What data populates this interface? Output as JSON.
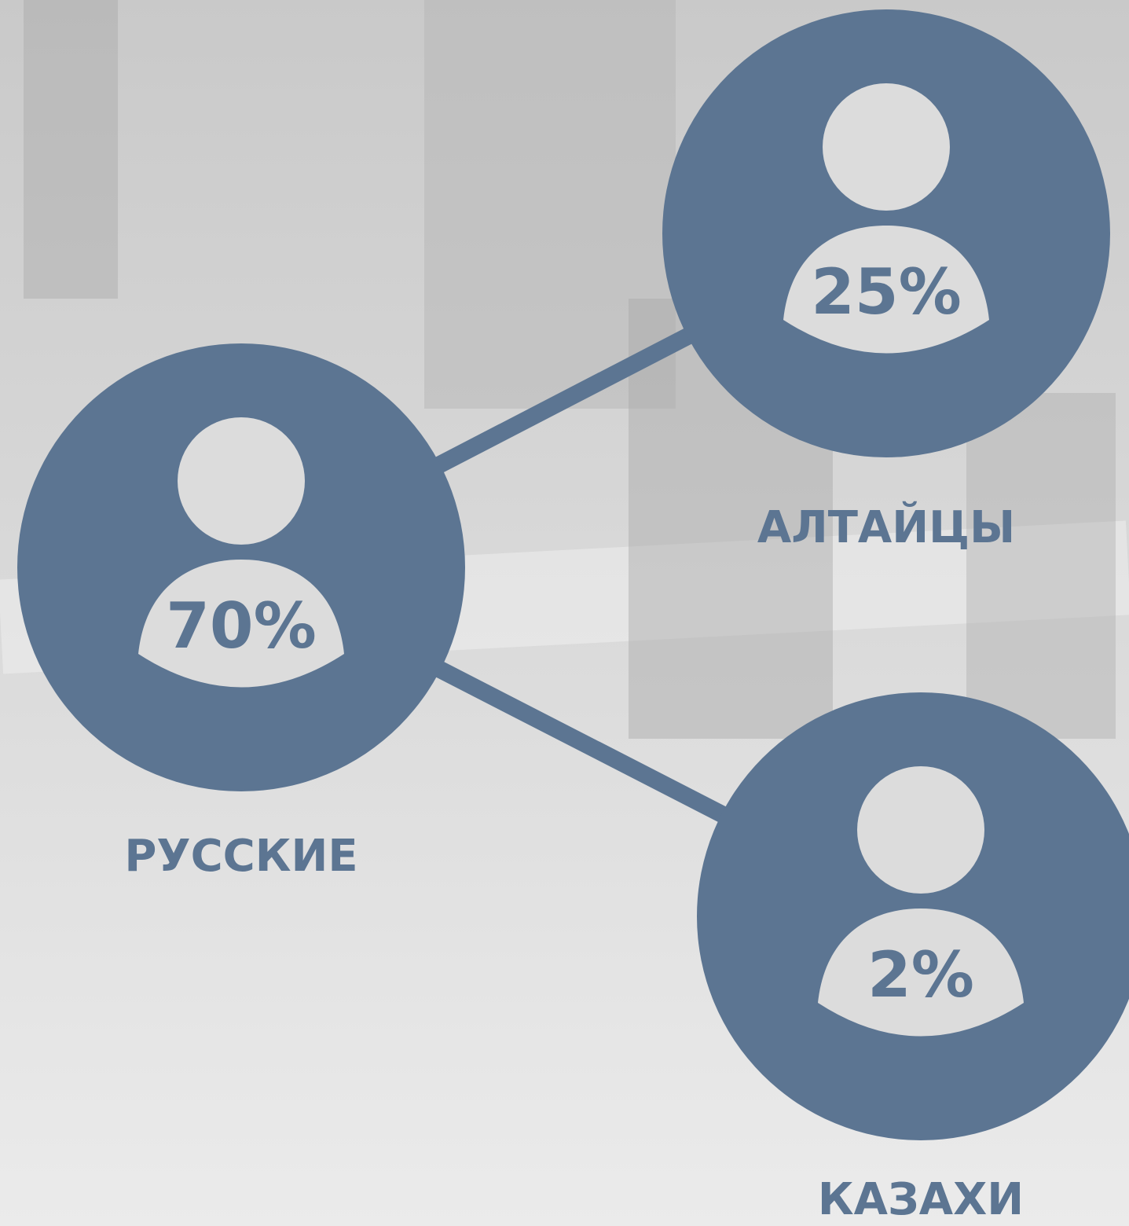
{
  "nodes": [
    {
      "label": "РУССКИЕ",
      "value": "70%"
    },
    {
      "label": "АЛТАЙЦЫ",
      "value": "25%"
    },
    {
      "label": "КАЗАХИ",
      "value": "2%"
    }
  ]
}
